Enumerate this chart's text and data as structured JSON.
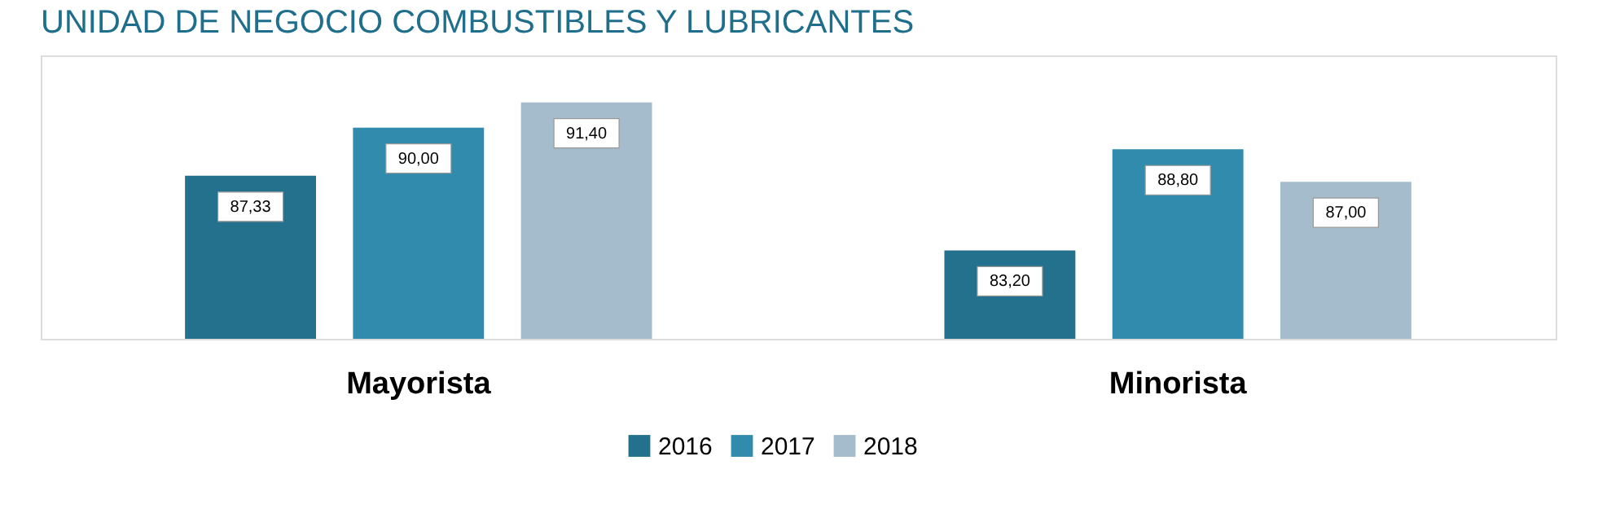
{
  "chart_data": {
    "type": "bar",
    "title": "UNIDAD DE NEGOCIO COMBUSTIBLES Y LUBRICANTES",
    "categories": [
      "Mayorista",
      "Minorista"
    ],
    "series": [
      {
        "name": "2016",
        "color": "#24718d",
        "values": [
          87.33,
          83.2
        ],
        "value_labels": [
          "87,33",
          "83,20"
        ]
      },
      {
        "name": "2017",
        "color": "#318bad",
        "values": [
          90.0,
          88.8
        ],
        "value_labels": [
          "90,00",
          "88,80"
        ]
      },
      {
        "name": "2018",
        "color": "#a5bccc",
        "values": [
          91.4,
          87.0
        ],
        "value_labels": [
          "91,40",
          "87,00"
        ]
      }
    ],
    "ylim": [
      78.3,
      94
    ],
    "tick_labels": "x",
    "grid": false,
    "legend": "bottom"
  }
}
